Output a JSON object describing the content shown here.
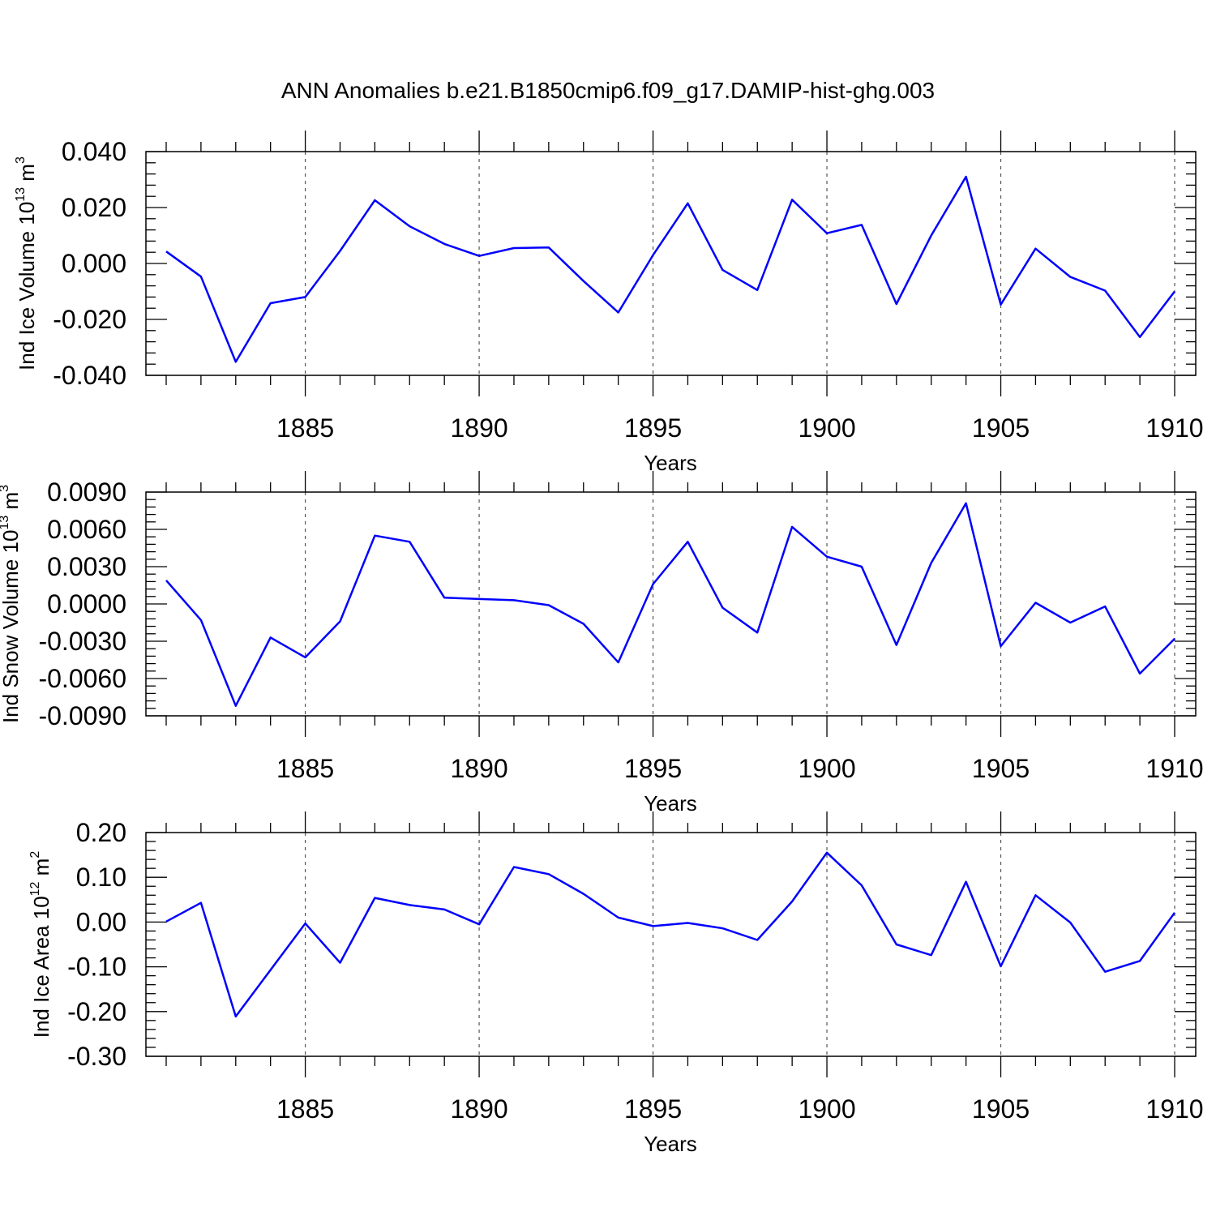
{
  "title": "ANN Anomalies b.e21.B1850cmip6.f09_g17.DAMIP-hist-ghg.003",
  "colors": {
    "line": "#0000ff",
    "axis": "#000000",
    "grid": "#555555"
  },
  "chart_data": [
    {
      "type": "line",
      "xlabel": "Years",
      "ylabel": {
        "text": "Ind Ice Volume 10",
        "exp": "13",
        "unit": " m",
        "unit_exp": "3"
      },
      "xlim": [
        1881,
        1910
      ],
      "ylim": [
        -0.04,
        0.04
      ],
      "xticks": [
        "1885",
        "1890",
        "1895",
        "1900",
        "1905",
        "1910"
      ],
      "yticks": [
        "0.040",
        "0.020",
        "0.000",
        "-0.020",
        "-0.040"
      ],
      "grid": "vertical-dashed",
      "x": [
        1881,
        1882,
        1883,
        1884,
        1885,
        1886,
        1887,
        1888,
        1889,
        1890,
        1891,
        1892,
        1893,
        1894,
        1895,
        1896,
        1897,
        1898,
        1899,
        1900,
        1901,
        1902,
        1903,
        1904,
        1905,
        1906,
        1907,
        1908,
        1909,
        1910
      ],
      "series": [
        {
          "values": [
            0.0043,
            -0.0047,
            -0.0352,
            -0.0142,
            -0.012,
            0.0045,
            0.0226,
            0.0133,
            0.007,
            0.0027,
            0.0055,
            0.0057,
            -0.0063,
            -0.0175,
            0.003,
            0.0215,
            -0.0023,
            -0.0095,
            0.0228,
            0.0108,
            0.0138,
            -0.0145,
            0.01,
            0.031,
            -0.0147,
            0.0053,
            -0.0048,
            -0.0097,
            -0.0263,
            -0.01
          ]
        }
      ]
    },
    {
      "type": "line",
      "xlabel": "Years",
      "ylabel": {
        "text": "Ind Snow Volume 10",
        "exp": "13",
        "unit": " m",
        "unit_exp": "3"
      },
      "xlim": [
        1881,
        1910
      ],
      "ylim": [
        -0.009,
        0.009
      ],
      "xticks": [
        "1885",
        "1890",
        "1895",
        "1900",
        "1905",
        "1910"
      ],
      "yticks": [
        "0.0090",
        "0.0060",
        "0.0030",
        "0.0000",
        "-0.0030",
        "-0.0060",
        "-0.0090"
      ],
      "grid": "vertical-dashed",
      "x": [
        1881,
        1882,
        1883,
        1884,
        1885,
        1886,
        1887,
        1888,
        1889,
        1890,
        1891,
        1892,
        1893,
        1894,
        1895,
        1896,
        1897,
        1898,
        1899,
        1900,
        1901,
        1902,
        1903,
        1904,
        1905,
        1906,
        1907,
        1908,
        1909,
        1910
      ],
      "series": [
        {
          "values": [
            0.0019,
            -0.0013,
            -0.0082,
            -0.0027,
            -0.0043,
            -0.0014,
            0.0055,
            0.005,
            0.0005,
            0.0004,
            0.0003,
            -0.0001,
            -0.0016,
            -0.0047,
            0.0016,
            0.005,
            -0.0003,
            -0.0023,
            0.0062,
            0.0038,
            0.003,
            -0.0033,
            0.0033,
            0.0081,
            -0.0034,
            0.0001,
            -0.0015,
            -0.0002,
            -0.0056,
            -0.0028
          ]
        }
      ]
    },
    {
      "type": "line",
      "xlabel": "Years",
      "ylabel": {
        "text": "Ind Ice Area 10",
        "exp": "12",
        "unit": " m",
        "unit_exp": "2"
      },
      "xlim": [
        1881,
        1910
      ],
      "ylim": [
        -0.3,
        0.2
      ],
      "xticks": [
        "1885",
        "1890",
        "1895",
        "1900",
        "1905",
        "1910"
      ],
      "yticks": [
        "0.20",
        "0.10",
        "0.00",
        "-0.10",
        "-0.20",
        "-0.30"
      ],
      "grid": "vertical-dashed",
      "x": [
        1881,
        1882,
        1883,
        1884,
        1885,
        1886,
        1887,
        1888,
        1889,
        1890,
        1891,
        1892,
        1893,
        1894,
        1895,
        1896,
        1897,
        1898,
        1899,
        1900,
        1901,
        1902,
        1903,
        1904,
        1905,
        1906,
        1907,
        1908,
        1909,
        1910
      ],
      "series": [
        {
          "values": [
            0.001,
            0.043,
            -0.211,
            -0.107,
            -0.003,
            -0.091,
            0.054,
            0.038,
            0.028,
            -0.005,
            0.123,
            0.107,
            0.063,
            0.01,
            -0.009,
            -0.002,
            -0.014,
            -0.04,
            0.046,
            0.155,
            0.082,
            -0.05,
            -0.074,
            0.09,
            -0.099,
            0.06,
            -0.001,
            -0.111,
            -0.087,
            0.021
          ]
        }
      ]
    }
  ]
}
